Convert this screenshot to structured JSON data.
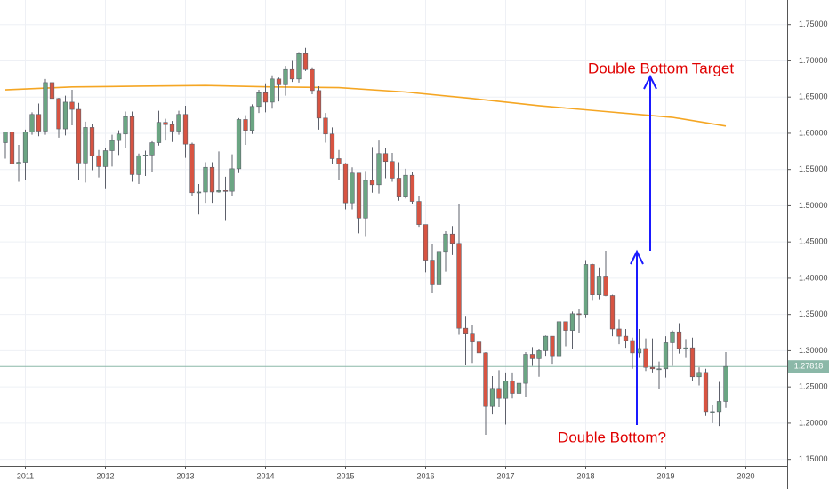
{
  "chart_data": {
    "type": "candlestick",
    "annotations": [
      "Double Bottom Target",
      "Double Bottom?"
    ],
    "up_color": "#6ba583",
    "down_color": "#d75442",
    "wick_color": "#5d606b",
    "open": [
      1.587,
      1.602,
      1.558,
      1.56,
      1.602,
      1.626,
      1.603,
      1.67,
      1.648,
      1.606,
      1.643,
      1.633,
      1.559,
      1.608,
      1.569,
      1.554,
      1.576,
      1.59,
      1.599,
      1.623,
      1.543,
      1.569,
      1.57,
      1.587,
      1.615,
      1.612,
      1.603,
      1.626,
      1.585,
      1.518,
      1.519,
      1.553,
      1.519,
      1.521,
      1.52,
      1.551,
      1.619,
      1.604,
      1.637,
      1.656,
      1.643,
      1.675,
      1.667,
      1.688,
      1.675,
      1.71,
      1.688,
      1.659,
      1.621,
      1.599,
      1.565,
      1.558,
      1.504,
      1.545,
      1.483,
      1.535,
      1.529,
      1.572,
      1.561,
      1.538,
      1.512,
      1.542,
      1.506,
      1.474,
      1.425,
      1.392,
      1.437,
      1.461,
      1.448,
      1.331,
      1.323,
      1.312,
      1.297,
      1.223,
      1.248,
      1.234,
      1.258,
      1.241,
      1.255,
      1.295,
      1.289,
      1.3,
      1.32,
      1.293,
      1.34,
      1.328,
      1.351,
      1.35,
      1.419,
      1.377,
      1.403,
      1.376,
      1.33,
      1.32,
      1.314,
      1.297,
      1.303,
      1.277,
      1.275,
      1.275,
      1.311,
      1.326,
      1.303,
      1.304,
      1.264,
      1.27,
      1.216,
      1.216,
      1.23
    ],
    "high": [
      1.6,
      1.628,
      1.584,
      1.605,
      1.629,
      1.641,
      1.675,
      1.67,
      1.649,
      1.652,
      1.66,
      1.642,
      1.616,
      1.613,
      1.577,
      1.58,
      1.598,
      1.604,
      1.63,
      1.63,
      1.572,
      1.576,
      1.589,
      1.631,
      1.62,
      1.617,
      1.631,
      1.638,
      1.587,
      1.53,
      1.56,
      1.56,
      1.575,
      1.54,
      1.571,
      1.621,
      1.625,
      1.64,
      1.66,
      1.669,
      1.68,
      1.677,
      1.693,
      1.7,
      1.711,
      1.718,
      1.691,
      1.665,
      1.628,
      1.608,
      1.577,
      1.559,
      1.553,
      1.545,
      1.548,
      1.581,
      1.59,
      1.58,
      1.573,
      1.56,
      1.551,
      1.546,
      1.513,
      1.474,
      1.447,
      1.444,
      1.465,
      1.472,
      1.502,
      1.348,
      1.335,
      1.346,
      1.298,
      1.265,
      1.273,
      1.27,
      1.27,
      1.262,
      1.298,
      1.305,
      1.302,
      1.321,
      1.32,
      1.366,
      1.337,
      1.354,
      1.357,
      1.425,
      1.42,
      1.415,
      1.438,
      1.377,
      1.343,
      1.33,
      1.318,
      1.33,
      1.317,
      1.317,
      1.285,
      1.32,
      1.328,
      1.338,
      1.316,
      1.318,
      1.277,
      1.275,
      1.225,
      1.257,
      1.298
    ],
    "low": [
      1.565,
      1.553,
      1.533,
      1.536,
      1.598,
      1.596,
      1.598,
      1.612,
      1.594,
      1.597,
      1.611,
      1.535,
      1.532,
      1.549,
      1.539,
      1.523,
      1.554,
      1.57,
      1.58,
      1.533,
      1.53,
      1.541,
      1.546,
      1.583,
      1.59,
      1.588,
      1.598,
      1.566,
      1.514,
      1.488,
      1.504,
      1.504,
      1.518,
      1.479,
      1.514,
      1.545,
      1.584,
      1.599,
      1.628,
      1.629,
      1.634,
      1.644,
      1.652,
      1.671,
      1.67,
      1.686,
      1.654,
      1.605,
      1.587,
      1.558,
      1.536,
      1.495,
      1.495,
      1.462,
      1.457,
      1.518,
      1.517,
      1.538,
      1.533,
      1.507,
      1.51,
      1.502,
      1.471,
      1.408,
      1.38,
      1.392,
      1.409,
      1.432,
      1.322,
      1.28,
      1.283,
      1.291,
      1.184,
      1.212,
      1.222,
      1.198,
      1.234,
      1.211,
      1.236,
      1.279,
      1.264,
      1.293,
      1.282,
      1.287,
      1.306,
      1.303,
      1.325,
      1.345,
      1.37,
      1.371,
      1.375,
      1.32,
      1.309,
      1.304,
      1.275,
      1.29,
      1.272,
      1.27,
      1.247,
      1.263,
      1.279,
      1.296,
      1.29,
      1.258,
      1.252,
      1.21,
      1.2,
      1.196,
      1.221
    ],
    "close": [
      1.602,
      1.558,
      1.56,
      1.602,
      1.626,
      1.603,
      1.67,
      1.648,
      1.606,
      1.643,
      1.633,
      1.559,
      1.608,
      1.569,
      1.554,
      1.576,
      1.59,
      1.599,
      1.623,
      1.543,
      1.569,
      1.57,
      1.587,
      1.615,
      1.612,
      1.603,
      1.626,
      1.585,
      1.518,
      1.519,
      1.553,
      1.519,
      1.521,
      1.52,
      1.551,
      1.619,
      1.604,
      1.637,
      1.656,
      1.643,
      1.675,
      1.667,
      1.688,
      1.675,
      1.71,
      1.688,
      1.659,
      1.621,
      1.599,
      1.565,
      1.558,
      1.504,
      1.545,
      1.483,
      1.535,
      1.529,
      1.572,
      1.561,
      1.538,
      1.512,
      1.542,
      1.506,
      1.474,
      1.425,
      1.392,
      1.437,
      1.461,
      1.448,
      1.331,
      1.323,
      1.312,
      1.297,
      1.223,
      1.248,
      1.234,
      1.258,
      1.241,
      1.255,
      1.295,
      1.289,
      1.3,
      1.32,
      1.293,
      1.34,
      1.328,
      1.351,
      1.35,
      1.419,
      1.377,
      1.403,
      1.376,
      1.33,
      1.32,
      1.314,
      1.297,
      1.303,
      1.277,
      1.275,
      1.275,
      1.311,
      1.326,
      1.303,
      1.304,
      1.264,
      1.27,
      1.216,
      1.216,
      1.23,
      1.27818
    ],
    "moving_average": {
      "color": "#f5a623",
      "x": [
        0,
        10,
        20,
        30,
        40,
        50,
        60,
        70,
        80,
        90,
        100,
        108
      ],
      "values": [
        1.66,
        1.664,
        1.665,
        1.666,
        1.664,
        1.663,
        1.657,
        1.648,
        1.638,
        1.63,
        1.622,
        1.61
      ]
    },
    "last_price": 1.27818,
    "last_price_color": "#8bb8a8",
    "xlim": [
      -0.8,
      117.2
    ],
    "xticks": [
      {
        "value": 3,
        "label": "2011"
      },
      {
        "value": 15,
        "label": "2012"
      },
      {
        "value": 27,
        "label": "2013"
      },
      {
        "value": 39,
        "label": "2014"
      },
      {
        "value": 51,
        "label": "2015"
      },
      {
        "value": 63,
        "label": "2016"
      },
      {
        "value": 75,
        "label": "2017"
      },
      {
        "value": 87,
        "label": "2018"
      },
      {
        "value": 99,
        "label": "2019"
      },
      {
        "value": 111,
        "label": "2020"
      }
    ],
    "ylim": [
      1.141,
      1.784
    ],
    "yticks": [
      {
        "value": 1.15,
        "label": "1.15000"
      },
      {
        "value": 1.2,
        "label": "1.20000"
      },
      {
        "value": 1.25,
        "label": "1.25000"
      },
      {
        "value": 1.3,
        "label": "1.30000"
      },
      {
        "value": 1.35,
        "label": "1.35000"
      },
      {
        "value": 1.4,
        "label": "1.40000"
      },
      {
        "value": 1.45,
        "label": "1.45000"
      },
      {
        "value": 1.5,
        "label": "1.50000"
      },
      {
        "value": 1.55,
        "label": "1.55000"
      },
      {
        "value": 1.6,
        "label": "1.60000"
      },
      {
        "value": 1.65,
        "label": "1.65000"
      },
      {
        "value": 1.7,
        "label": "1.70000"
      },
      {
        "value": 1.75,
        "label": "1.75000"
      }
    ],
    "grid": true
  }
}
